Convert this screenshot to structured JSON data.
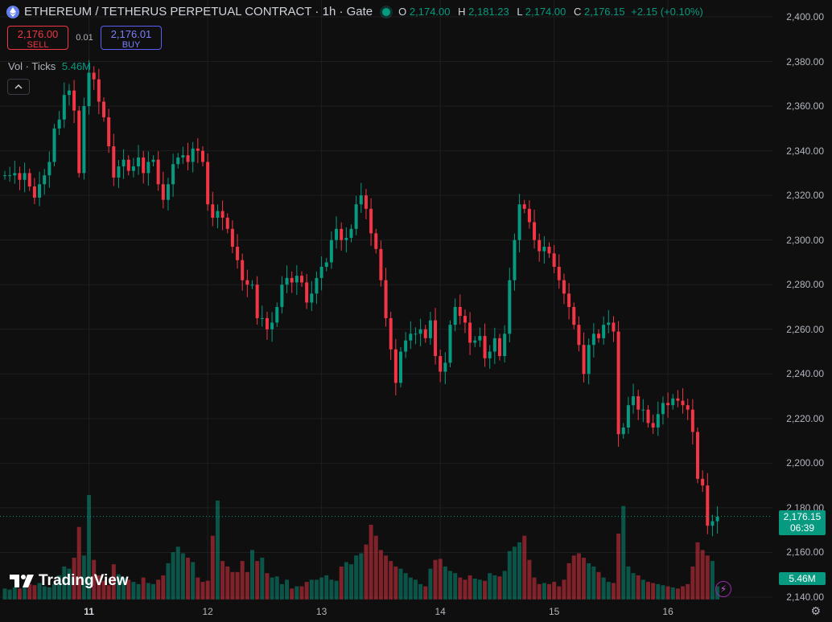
{
  "header": {
    "symbol": "ETHEREUM / TETHERUS PERPETUAL CONTRACT · 1h · Gate",
    "open_key": "O",
    "open": "2,174.00",
    "high_key": "H",
    "high": "2,181.23",
    "low_key": "L",
    "low": "2,174.00",
    "close_key": "C",
    "close": "2,176.15",
    "change": "+2.15 (+0.10%)"
  },
  "trade": {
    "sell_price": "2,176.00",
    "sell_label": "SELL",
    "spread": "0.01",
    "buy_price": "2,176.01",
    "buy_label": "BUY"
  },
  "volume_legend": {
    "label": "Vol · Ticks",
    "value": "5.46M"
  },
  "collapse_icon": "chevron-up-icon",
  "logo": {
    "text": "TradingView",
    "icon": "tradingview-logo-icon"
  },
  "price_tag": {
    "price": "2,176.15",
    "countdown": "06:39"
  },
  "volume_tag": "5.46M",
  "colors": {
    "up": "#089981",
    "down": "#f23645",
    "background": "#0f0f0f",
    "grid": "#1e1e1e"
  },
  "chart_data": {
    "type": "candlestick",
    "y_axis": {
      "range": [
        2140,
        2400
      ],
      "ticks": [
        "2,400.00",
        "2,380.00",
        "2,360.00",
        "2,340.00",
        "2,320.00",
        "2,300.00",
        "2,280.00",
        "2,260.00",
        "2,240.00",
        "2,220.00",
        "2,200.00",
        "2,180.00",
        "2,160.00",
        "2,140.00"
      ]
    },
    "x_axis": {
      "ticks": [
        "11",
        "12",
        "13",
        "14",
        "15",
        "16"
      ]
    },
    "last_price": 2176.15,
    "closes": [
      2329,
      2329,
      2330,
      2327,
      2330,
      2324,
      2319,
      2325,
      2329,
      2335,
      2350,
      2354,
      2365,
      2367,
      2358,
      2330,
      2360,
      2375,
      2372,
      2362,
      2355,
      2342,
      2328,
      2333,
      2336,
      2331,
      2333,
      2337,
      2330,
      2335,
      2336,
      2325,
      2318,
      2325,
      2334,
      2337,
      2338,
      2335,
      2341,
      2340,
      2335,
      2316,
      2310,
      2313,
      2310,
      2305,
      2297,
      2291,
      2282,
      2280,
      2280,
      2265,
      2265,
      2260,
      2263,
      2270,
      2280,
      2283,
      2281,
      2284,
      2281,
      2272,
      2276,
      2283,
      2288,
      2290,
      2300,
      2305,
      2300,
      2301,
      2305,
      2316,
      2320,
      2314,
      2303,
      2296,
      2282,
      2265,
      2251,
      2236,
      2250,
      2255,
      2258,
      2258,
      2260,
      2256,
      2264,
      2248,
      2241,
      2245,
      2262,
      2270,
      2266,
      2263,
      2254,
      2255,
      2257,
      2247,
      2250,
      2256,
      2248,
      2258,
      2282,
      2300,
      2316,
      2314,
      2308,
      2300,
      2295,
      2297,
      2294,
      2288,
      2282,
      2276,
      2270,
      2262,
      2253,
      2240,
      2253,
      2258,
      2256,
      2262,
      2263,
      2259,
      2213,
      2216,
      2226,
      2230,
      2224,
      2224,
      2218,
      2216,
      2222,
      2227,
      2226,
      2229,
      2228,
      2226,
      2224,
      2214,
      2193,
      2190,
      2172,
      2174,
      2176
    ],
    "volumes": [
      10,
      9,
      11,
      10,
      12,
      14,
      13,
      15,
      12,
      11,
      14,
      22,
      30,
      28,
      38,
      66,
      40,
      95,
      36,
      22,
      17,
      13,
      32,
      23,
      20,
      18,
      16,
      14,
      20,
      15,
      14,
      18,
      22,
      33,
      43,
      48,
      42,
      38,
      34,
      20,
      16,
      17,
      58,
      90,
      35,
      30,
      25,
      25,
      35,
      25,
      45,
      35,
      38,
      24,
      20,
      21,
      14,
      18,
      10,
      12,
      12,
      16,
      18,
      18,
      20,
      22,
      18,
      17,
      30,
      34,
      32,
      40,
      42,
      50,
      68,
      58,
      45,
      40,
      35,
      30,
      28,
      24,
      20,
      18,
      14,
      12,
      28,
      36,
      37,
      30,
      26,
      24,
      20,
      18,
      22,
      19,
      18,
      17,
      24,
      22,
      21,
      26,
      44,
      48,
      52,
      58,
      36,
      20,
      14,
      15,
      14,
      16,
      12,
      18,
      33,
      40,
      42,
      38,
      33,
      30,
      25,
      20,
      16,
      15,
      60,
      85,
      30,
      24,
      22,
      18,
      16,
      15,
      14,
      13,
      12,
      11,
      10,
      12,
      14,
      30,
      52,
      45,
      40,
      35,
      12
    ]
  }
}
